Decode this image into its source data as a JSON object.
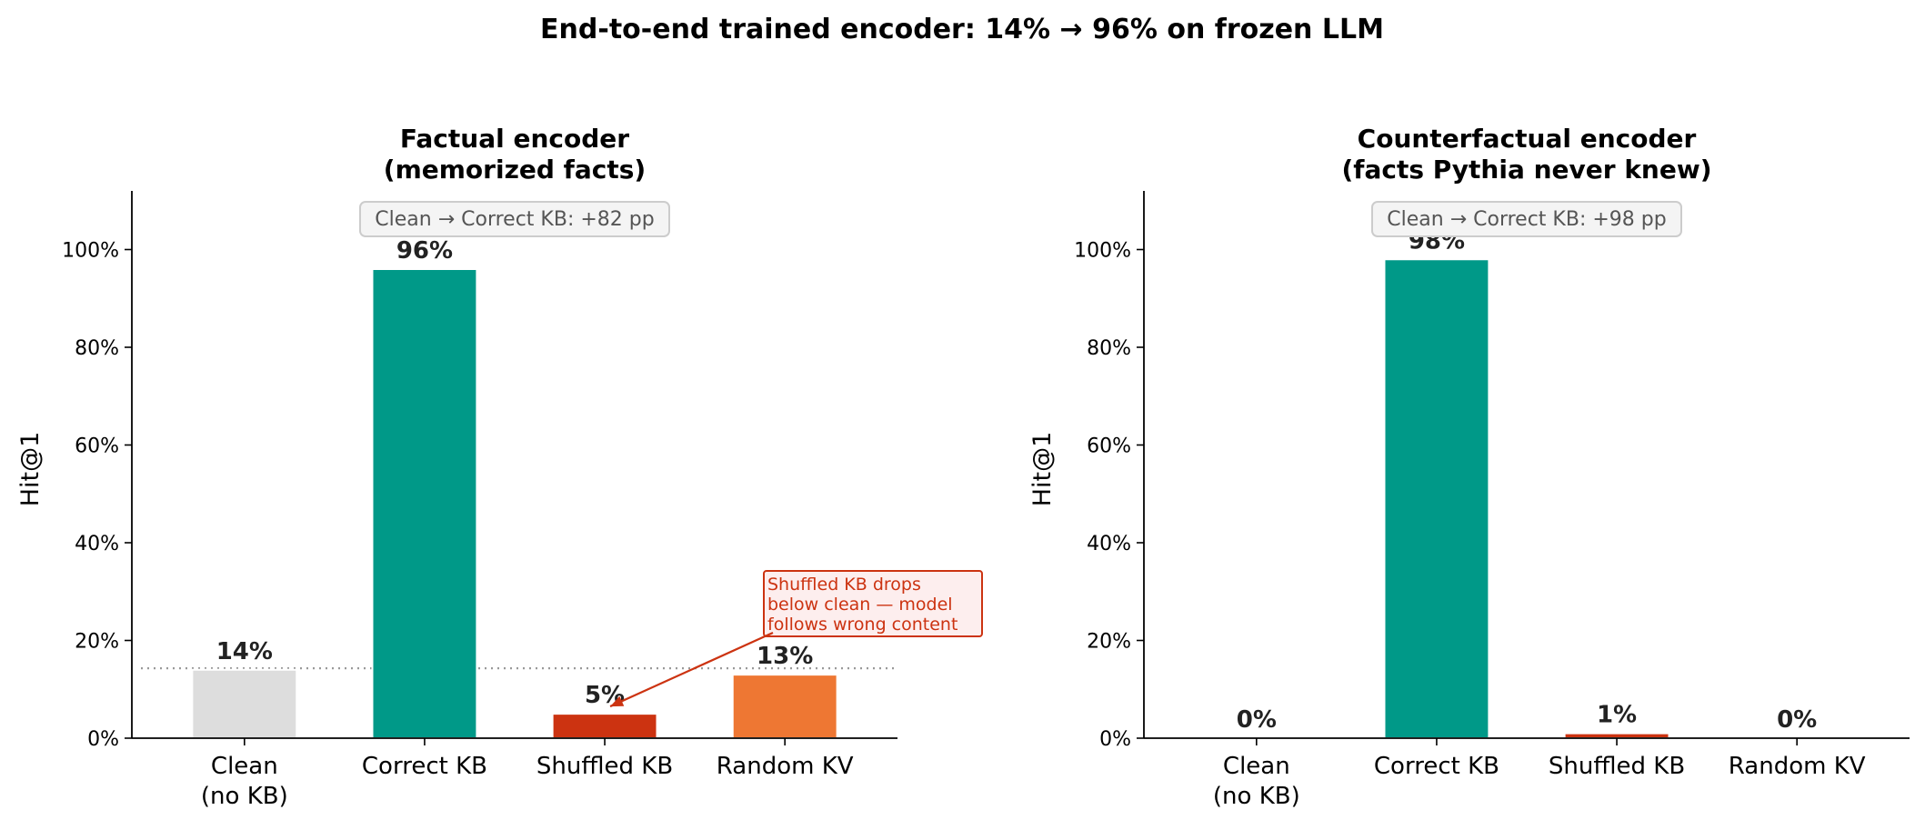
{
  "figure": {
    "title": "End-to-end trained encoder: 14% → 96% on frozen LLM"
  },
  "chart_data": [
    {
      "type": "bar",
      "title": "Factual encoder",
      "subtitle": "(memorized facts)",
      "ylabel": "Hit@1",
      "xlabel": "",
      "categories": [
        "Clean\n(no KB)",
        "Correct KB",
        "Shuffled KB",
        "Random KV"
      ],
      "values": [
        14,
        96,
        5,
        13
      ],
      "value_labels": [
        "14%",
        "96%",
        "5%",
        "13%"
      ],
      "colors": [
        "#dddddd",
        "#009988",
        "#cc3311",
        "#ee7733"
      ],
      "ylim": [
        0,
        112
      ],
      "yticks": [
        0,
        20,
        40,
        60,
        80,
        100
      ],
      "ytick_labels": [
        "0%",
        "20%",
        "40%",
        "60%",
        "80%",
        "100%"
      ],
      "baseline_value": 14.3,
      "grid": false,
      "annotation_box": "Clean → Correct KB: +82 pp",
      "callout": {
        "lines": [
          "Shuffled KB drops",
          "below clean — model",
          "follows wrong content"
        ],
        "target_category": 2,
        "target_value": 6.5,
        "color": "#cc3311"
      }
    },
    {
      "type": "bar",
      "title": "Counterfactual encoder",
      "subtitle": "(facts Pythia never knew)",
      "ylabel": "Hit@1",
      "xlabel": "",
      "categories": [
        "Clean\n(no KB)",
        "Correct KB",
        "Shuffled KB",
        "Random KV"
      ],
      "values": [
        0,
        98,
        1,
        0
      ],
      "value_labels": [
        "0%",
        "98%",
        "1%",
        "0%"
      ],
      "colors": [
        "#dddddd",
        "#009988",
        "#cc3311",
        "#ee7733"
      ],
      "ylim": [
        0,
        112
      ],
      "yticks": [
        0,
        20,
        40,
        60,
        80,
        100
      ],
      "ytick_labels": [
        "0%",
        "20%",
        "40%",
        "60%",
        "80%",
        "100%"
      ],
      "grid": false,
      "annotation_box": "Clean → Correct KB: +98 pp"
    }
  ]
}
